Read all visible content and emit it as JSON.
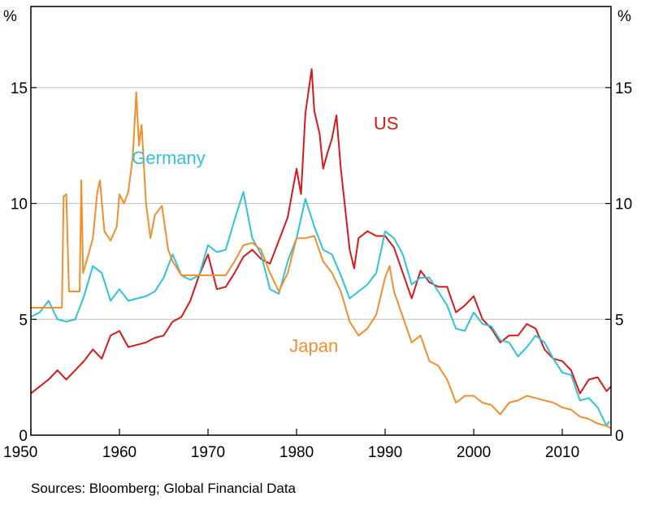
{
  "chart_data": {
    "type": "line",
    "title": "",
    "xlabel": "",
    "ylabel": "%",
    "ylabel_right": "%",
    "xlim": [
      1950,
      2015.5
    ],
    "ylim": [
      0,
      18.5
    ],
    "x_ticks": [
      1950,
      1960,
      1970,
      1980,
      1990,
      2000,
      2010
    ],
    "y_ticks": [
      0,
      5,
      10,
      15
    ],
    "gridlines": [
      5,
      10,
      15
    ],
    "source": "Sources:  Bloomberg; Global Financial Data",
    "series": [
      {
        "name": "US",
        "color": "#d7191c",
        "label_at": [
          1988.7,
          13.2
        ],
        "points": [
          [
            1950,
            1.8
          ],
          [
            1951,
            2.1
          ],
          [
            1952,
            2.4
          ],
          [
            1953,
            2.8
          ],
          [
            1954,
            2.4
          ],
          [
            1955,
            2.8
          ],
          [
            1956,
            3.2
          ],
          [
            1957,
            3.7
          ],
          [
            1958,
            3.3
          ],
          [
            1959,
            4.3
          ],
          [
            1960,
            4.5
          ],
          [
            1961,
            3.8
          ],
          [
            1962,
            3.9
          ],
          [
            1963,
            4.0
          ],
          [
            1964,
            4.2
          ],
          [
            1965,
            4.3
          ],
          [
            1966,
            4.9
          ],
          [
            1967,
            5.1
          ],
          [
            1968,
            5.8
          ],
          [
            1969,
            6.9
          ],
          [
            1970,
            7.8
          ],
          [
            1971,
            6.3
          ],
          [
            1972,
            6.4
          ],
          [
            1973,
            7.0
          ],
          [
            1974,
            7.7
          ],
          [
            1975,
            8.0
          ],
          [
            1976,
            7.6
          ],
          [
            1977,
            7.4
          ],
          [
            1978,
            8.4
          ],
          [
            1979,
            9.4
          ],
          [
            1980,
            11.5
          ],
          [
            1980.5,
            10.4
          ],
          [
            1981,
            13.9
          ],
          [
            1981.7,
            15.8
          ],
          [
            1982,
            14.0
          ],
          [
            1982.6,
            13.0
          ],
          [
            1983,
            11.5
          ],
          [
            1983.5,
            12.2
          ],
          [
            1984,
            12.8
          ],
          [
            1984.5,
            13.8
          ],
          [
            1985,
            11.5
          ],
          [
            1986,
            8.0
          ],
          [
            1986.5,
            7.2
          ],
          [
            1987,
            8.5
          ],
          [
            1988,
            8.8
          ],
          [
            1989,
            8.6
          ],
          [
            1990,
            8.6
          ],
          [
            1991,
            8.1
          ],
          [
            1992,
            7.0
          ],
          [
            1993,
            5.9
          ],
          [
            1994,
            7.1
          ],
          [
            1995,
            6.6
          ],
          [
            1996,
            6.4
          ],
          [
            1997,
            6.4
          ],
          [
            1998,
            5.3
          ],
          [
            1999,
            5.6
          ],
          [
            2000,
            6.0
          ],
          [
            2001,
            5.0
          ],
          [
            2002,
            4.6
          ],
          [
            2003,
            4.0
          ],
          [
            2004,
            4.3
          ],
          [
            2005,
            4.3
          ],
          [
            2006,
            4.8
          ],
          [
            2007,
            4.6
          ],
          [
            2008,
            3.7
          ],
          [
            2009,
            3.3
          ],
          [
            2010,
            3.2
          ],
          [
            2011,
            2.8
          ],
          [
            2012,
            1.8
          ],
          [
            2013,
            2.4
          ],
          [
            2014,
            2.5
          ],
          [
            2015,
            1.9
          ],
          [
            2015.5,
            2.1
          ]
        ]
      },
      {
        "name": "Germany",
        "color": "#2ec4d4",
        "label_at": [
          1961.4,
          11.7
        ],
        "points": [
          [
            1950,
            5.1
          ],
          [
            1951,
            5.3
          ],
          [
            1952,
            5.8
          ],
          [
            1953,
            5.0
          ],
          [
            1954,
            4.9
          ],
          [
            1955,
            5.0
          ],
          [
            1956,
            6.0
          ],
          [
            1957,
            7.3
          ],
          [
            1958,
            7.0
          ],
          [
            1959,
            5.8
          ],
          [
            1960,
            6.3
          ],
          [
            1961,
            5.8
          ],
          [
            1962,
            5.9
          ],
          [
            1963,
            6.0
          ],
          [
            1964,
            6.2
          ],
          [
            1965,
            6.8
          ],
          [
            1966,
            7.8
          ],
          [
            1967,
            6.9
          ],
          [
            1968,
            6.7
          ],
          [
            1969,
            6.9
          ],
          [
            1970,
            8.2
          ],
          [
            1971,
            7.9
          ],
          [
            1972,
            8.0
          ],
          [
            1973,
            9.3
          ],
          [
            1974,
            10.5
          ],
          [
            1975,
            8.5
          ],
          [
            1976,
            7.8
          ],
          [
            1977,
            6.3
          ],
          [
            1978,
            6.1
          ],
          [
            1979,
            7.5
          ],
          [
            1980,
            8.5
          ],
          [
            1981,
            10.2
          ],
          [
            1982,
            9.0
          ],
          [
            1983,
            8.0
          ],
          [
            1984,
            7.8
          ],
          [
            1985,
            6.9
          ],
          [
            1986,
            5.9
          ],
          [
            1987,
            6.2
          ],
          [
            1988,
            6.5
          ],
          [
            1989,
            7.0
          ],
          [
            1990,
            8.8
          ],
          [
            1991,
            8.5
          ],
          [
            1992,
            7.8
          ],
          [
            1993,
            6.5
          ],
          [
            1994,
            6.8
          ],
          [
            1995,
            6.8
          ],
          [
            1996,
            6.2
          ],
          [
            1997,
            5.6
          ],
          [
            1998,
            4.6
          ],
          [
            1999,
            4.5
          ],
          [
            2000,
            5.3
          ],
          [
            2001,
            4.8
          ],
          [
            2002,
            4.7
          ],
          [
            2003,
            4.1
          ],
          [
            2004,
            4.0
          ],
          [
            2005,
            3.4
          ],
          [
            2006,
            3.8
          ],
          [
            2007,
            4.3
          ],
          [
            2008,
            4.0
          ],
          [
            2009,
            3.3
          ],
          [
            2010,
            2.7
          ],
          [
            2011,
            2.6
          ],
          [
            2012,
            1.5
          ],
          [
            2013,
            1.6
          ],
          [
            2014,
            1.2
          ],
          [
            2015,
            0.4
          ],
          [
            2015.3,
            0.6
          ]
        ]
      },
      {
        "name": "Japan",
        "color": "#f28e2b",
        "label_at": [
          1979.2,
          3.6
        ],
        "points": [
          [
            1950,
            5.5
          ],
          [
            1953.5,
            5.5
          ],
          [
            1953.7,
            10.3
          ],
          [
            1954,
            10.4
          ],
          [
            1954.3,
            6.2
          ],
          [
            1955.5,
            6.2
          ],
          [
            1955.7,
            11.0
          ],
          [
            1955.9,
            7.0
          ],
          [
            1956.5,
            7.8
          ],
          [
            1957,
            8.5
          ],
          [
            1957.5,
            10.5
          ],
          [
            1957.8,
            11.0
          ],
          [
            1958.3,
            8.8
          ],
          [
            1959,
            8.4
          ],
          [
            1959.7,
            9.0
          ],
          [
            1960,
            10.4
          ],
          [
            1960.5,
            10.0
          ],
          [
            1961,
            10.5
          ],
          [
            1961.5,
            12.0
          ],
          [
            1961.9,
            14.8
          ],
          [
            1962.2,
            12.5
          ],
          [
            1962.5,
            13.4
          ],
          [
            1963,
            10.0
          ],
          [
            1963.5,
            8.5
          ],
          [
            1964,
            9.5
          ],
          [
            1964.8,
            9.9
          ],
          [
            1965.5,
            8.0
          ],
          [
            1966,
            7.5
          ],
          [
            1966.5,
            7.2
          ],
          [
            1967,
            6.9
          ],
          [
            1972,
            6.9
          ],
          [
            1973,
            7.5
          ],
          [
            1974,
            8.2
          ],
          [
            1975,
            8.3
          ],
          [
            1976,
            8.0
          ],
          [
            1977,
            7.0
          ],
          [
            1978,
            6.2
          ],
          [
            1979,
            7.0
          ],
          [
            1980,
            8.5
          ],
          [
            1981,
            8.5
          ],
          [
            1982,
            8.6
          ],
          [
            1983,
            7.5
          ],
          [
            1984,
            7.0
          ],
          [
            1985,
            6.2
          ],
          [
            1986,
            4.9
          ],
          [
            1987,
            4.3
          ],
          [
            1988,
            4.6
          ],
          [
            1989,
            5.2
          ],
          [
            1990,
            6.8
          ],
          [
            1990.5,
            7.3
          ],
          [
            1991,
            6.2
          ],
          [
            1992,
            5.1
          ],
          [
            1993,
            4.0
          ],
          [
            1994,
            4.3
          ],
          [
            1995,
            3.2
          ],
          [
            1996,
            3.0
          ],
          [
            1997,
            2.4
          ],
          [
            1998,
            1.4
          ],
          [
            1999,
            1.7
          ],
          [
            2000,
            1.7
          ],
          [
            2001,
            1.4
          ],
          [
            2002,
            1.3
          ],
          [
            2003,
            0.9
          ],
          [
            2004,
            1.4
          ],
          [
            2005,
            1.5
          ],
          [
            2006,
            1.7
          ],
          [
            2007,
            1.6
          ],
          [
            2008,
            1.5
          ],
          [
            2009,
            1.4
          ],
          [
            2010,
            1.2
          ],
          [
            2011,
            1.1
          ],
          [
            2012,
            0.8
          ],
          [
            2013,
            0.7
          ],
          [
            2014,
            0.5
          ],
          [
            2015,
            0.4
          ],
          [
            2015.5,
            0.3
          ]
        ]
      }
    ]
  }
}
